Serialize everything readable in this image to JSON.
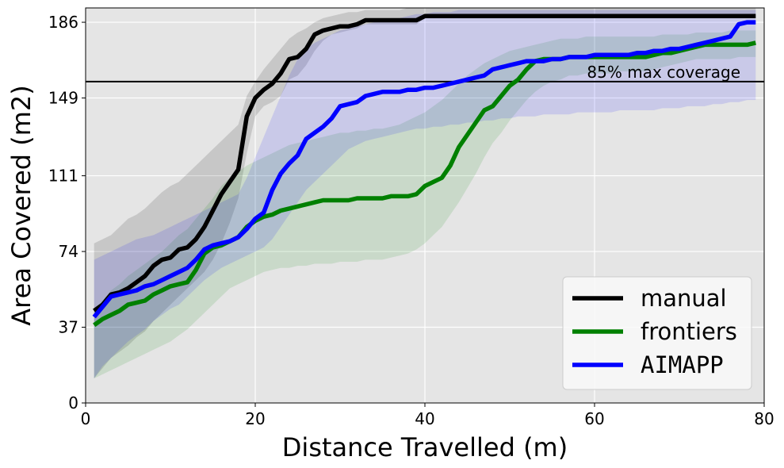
{
  "chart_data": {
    "type": "line",
    "title": "",
    "xlabel": "Distance Travelled (m)",
    "ylabel": "Area Covered (m2)",
    "xlim": [
      0,
      80
    ],
    "ylim": [
      0,
      193
    ],
    "xticks": [
      0,
      20,
      40,
      60,
      80
    ],
    "yticks": [
      0,
      37,
      74,
      111,
      149,
      186
    ],
    "grid": true,
    "legend_position": "lower-right",
    "reference_line": {
      "y": 157,
      "label": "85% max coverage",
      "color": "#000000"
    },
    "series": [
      {
        "name": "manual",
        "color": "#000000",
        "x": [
          1,
          2,
          3,
          4,
          5,
          6,
          7,
          8,
          9,
          10,
          11,
          12,
          13,
          14,
          15,
          16,
          17,
          18,
          19,
          20,
          21,
          22,
          23,
          24,
          25,
          26,
          27,
          28,
          29,
          30,
          31,
          32,
          33,
          34,
          35,
          36,
          37,
          38,
          39,
          40,
          45,
          50,
          55,
          60,
          65,
          70,
          75,
          79
        ],
        "y": [
          45,
          48,
          53,
          54,
          56,
          59,
          62,
          67,
          70,
          71,
          75,
          76,
          80,
          86,
          94,
          102,
          108,
          114,
          140,
          149,
          153,
          156,
          161,
          168,
          169,
          173,
          180,
          182,
          183,
          184,
          184,
          185,
          187,
          187,
          187,
          187,
          187,
          187,
          187,
          189,
          189,
          189,
          189,
          189,
          189,
          189,
          189,
          189
        ],
        "upper": [
          78,
          80,
          82,
          86,
          90,
          92,
          95,
          99,
          103,
          106,
          108,
          112,
          116,
          120,
          124,
          128,
          132,
          136,
          150,
          157,
          163,
          168,
          173,
          178,
          181,
          183,
          186,
          188,
          189,
          190,
          191,
          191,
          192,
          192,
          192,
          192,
          192,
          193,
          193,
          193,
          193,
          193,
          193,
          193,
          193,
          193,
          193,
          193
        ],
        "lower": [
          12,
          17,
          22,
          25,
          28,
          32,
          35,
          40,
          44,
          48,
          52,
          56,
          60,
          64,
          70,
          78,
          88,
          100,
          122,
          140,
          145,
          147,
          150,
          158,
          160,
          165,
          172,
          177,
          180,
          181,
          182,
          183,
          185,
          185,
          185,
          185,
          185,
          185,
          185,
          188,
          188,
          188,
          188,
          188,
          188,
          188,
          188,
          188
        ]
      },
      {
        "name": "frontiers",
        "color": "#008000",
        "x": [
          1,
          2,
          3,
          4,
          5,
          6,
          7,
          8,
          9,
          10,
          11,
          12,
          13,
          14,
          15,
          16,
          17,
          18,
          19,
          20,
          21,
          22,
          23,
          24,
          25,
          26,
          27,
          28,
          29,
          30,
          31,
          32,
          33,
          34,
          35,
          36,
          37,
          38,
          39,
          40,
          41,
          42,
          43,
          44,
          45,
          46,
          47,
          48,
          49,
          50,
          51,
          52,
          53,
          54,
          55,
          56,
          57,
          58,
          59,
          60,
          61,
          62,
          63,
          64,
          65,
          66,
          67,
          68,
          69,
          70,
          71,
          72,
          73,
          74,
          75,
          76,
          77,
          78,
          79
        ],
        "y": [
          38,
          41,
          43,
          45,
          48,
          49,
          50,
          53,
          55,
          57,
          58,
          59,
          65,
          73,
          76,
          77,
          79,
          81,
          86,
          89,
          91,
          92,
          94,
          95,
          96,
          97,
          98,
          99,
          99,
          99,
          99,
          100,
          100,
          100,
          100,
          101,
          101,
          101,
          102,
          106,
          108,
          110,
          116,
          125,
          131,
          137,
          143,
          145,
          150,
          155,
          158,
          163,
          167,
          168,
          168,
          168,
          169,
          169,
          169,
          169,
          169,
          169,
          169,
          169,
          169,
          169,
          170,
          171,
          171,
          172,
          173,
          174,
          175,
          175,
          175,
          175,
          175,
          175,
          176
        ],
        "upper": [
          45,
          50,
          55,
          58,
          62,
          65,
          68,
          71,
          74,
          78,
          82,
          85,
          90,
          95,
          100,
          106,
          110,
          113,
          116,
          118,
          120,
          122,
          124,
          126,
          127,
          128,
          129,
          130,
          131,
          132,
          132,
          133,
          133,
          134,
          134,
          135,
          136,
          138,
          140,
          142,
          145,
          148,
          152,
          156,
          160,
          163,
          166,
          168,
          170,
          172,
          173,
          174,
          175,
          176,
          177,
          178,
          178,
          178,
          179,
          179,
          179,
          179,
          179,
          179,
          179,
          179,
          179,
          180,
          180,
          180,
          180,
          181,
          181,
          181,
          181,
          182,
          182,
          182,
          182
        ],
        "lower": [
          12,
          14,
          16,
          18,
          20,
          22,
          24,
          26,
          28,
          30,
          33,
          36,
          40,
          44,
          48,
          52,
          56,
          58,
          60,
          62,
          64,
          65,
          66,
          66,
          67,
          67,
          68,
          68,
          68,
          69,
          69,
          69,
          70,
          70,
          70,
          71,
          72,
          73,
          75,
          78,
          82,
          86,
          92,
          98,
          105,
          112,
          120,
          127,
          132,
          138,
          143,
          148,
          152,
          155,
          157,
          158,
          160,
          160,
          161,
          161,
          161,
          161,
          162,
          162,
          162,
          162,
          163,
          164,
          165,
          166,
          167,
          168,
          168,
          168,
          168,
          168,
          169,
          169,
          169
        ]
      },
      {
        "name": "AIMAPP",
        "color": "#0000ff",
        "x": [
          1,
          2,
          3,
          4,
          5,
          6,
          7,
          8,
          9,
          10,
          11,
          12,
          13,
          14,
          15,
          16,
          17,
          18,
          19,
          20,
          21,
          22,
          23,
          24,
          25,
          26,
          27,
          28,
          29,
          30,
          31,
          32,
          33,
          34,
          35,
          36,
          37,
          38,
          39,
          40,
          41,
          42,
          43,
          44,
          45,
          46,
          47,
          48,
          49,
          50,
          51,
          52,
          53,
          54,
          55,
          56,
          57,
          58,
          59,
          60,
          61,
          62,
          63,
          64,
          65,
          66,
          67,
          68,
          69,
          70,
          71,
          72,
          73,
          74,
          75,
          76,
          77,
          78,
          79
        ],
        "y": [
          42,
          47,
          52,
          53,
          54,
          55,
          57,
          58,
          60,
          62,
          64,
          66,
          70,
          75,
          77,
          78,
          79,
          81,
          85,
          90,
          93,
          104,
          112,
          117,
          121,
          129,
          132,
          135,
          139,
          145,
          146,
          147,
          150,
          151,
          152,
          152,
          152,
          153,
          153,
          154,
          154,
          155,
          156,
          157,
          158,
          159,
          160,
          163,
          164,
          165,
          166,
          167,
          167,
          167,
          168,
          168,
          169,
          169,
          169,
          170,
          170,
          170,
          170,
          170,
          171,
          171,
          172,
          172,
          173,
          173,
          174,
          175,
          176,
          177,
          178,
          179,
          185,
          186,
          186
        ],
        "upper": [
          70,
          72,
          74,
          76,
          78,
          80,
          81,
          82,
          84,
          86,
          88,
          90,
          92,
          94,
          96,
          98,
          100,
          102,
          110,
          120,
          130,
          140,
          150,
          160,
          168,
          173,
          176,
          178,
          180,
          182,
          183,
          184,
          185,
          186,
          187,
          188,
          188,
          189,
          190,
          190,
          191,
          191,
          191,
          192,
          192,
          192,
          192,
          192,
          192,
          192,
          192,
          192,
          192,
          192,
          192,
          192,
          192,
          192,
          192,
          192,
          192,
          192,
          192,
          192,
          192,
          192,
          192,
          192,
          192,
          192,
          192,
          192,
          192,
          192,
          192,
          192,
          192,
          192,
          192
        ],
        "lower": [
          12,
          18,
          22,
          26,
          30,
          33,
          36,
          40,
          43,
          46,
          48,
          52,
          56,
          60,
          63,
          66,
          68,
          70,
          72,
          74,
          76,
          80,
          86,
          92,
          98,
          104,
          108,
          112,
          116,
          120,
          124,
          126,
          128,
          129,
          130,
          131,
          132,
          133,
          134,
          134,
          135,
          135,
          136,
          136,
          137,
          137,
          138,
          138,
          139,
          139,
          140,
          140,
          140,
          141,
          141,
          141,
          141,
          142,
          142,
          142,
          142,
          142,
          143,
          143,
          143,
          143,
          143,
          144,
          144,
          144,
          145,
          145,
          145,
          146,
          146,
          147,
          147,
          148,
          148
        ]
      }
    ]
  }
}
